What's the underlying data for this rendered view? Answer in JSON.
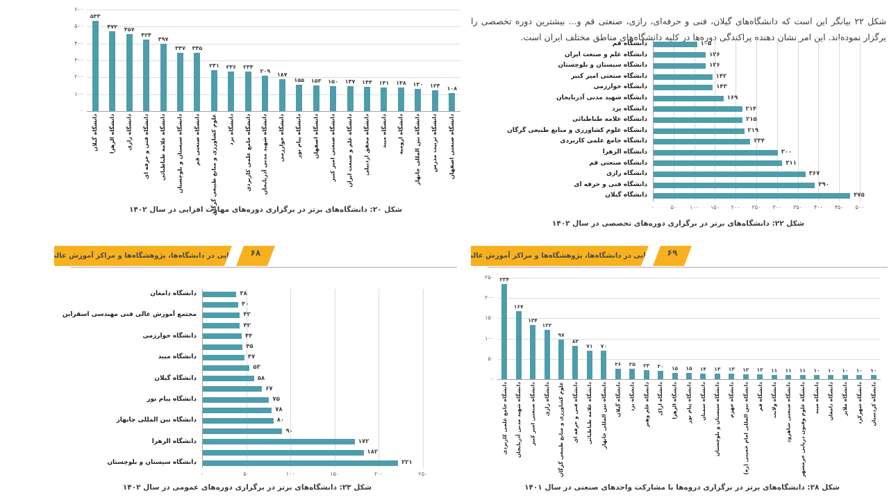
{
  "colors": {
    "bar": "#4E9DAB",
    "banner": "#F8B11E",
    "gridline": "#DCDCDC",
    "axis": "#A0A0A0",
    "text": "#3D3D3D"
  },
  "intro": {
    "text": "شکل ۲۲ بیانگر این است که دانشگاه‌های گیلان، فنی و حرفه‌ای، رازی، صنعتی قم و... بیشترین دوره تخصصی را برگزار نموده‌اند. این امر نشان دهنده پراکندگی دوره‌ها در کلیه دانشگاه‌های مناطق مختلف ایران است."
  },
  "banners": {
    "left": {
      "label": "مهارت‌افزایی در دانشگاه‌ها، پژوهشگاه‌ها و مراکز آموزش عالی کشور",
      "page": "۶۸"
    },
    "right": {
      "label": "مهارت‌افزایی در دانشگاه‌ها، پژوهشگاه‌ها و مراکز آموزش عالی کشور",
      "page": "۶۹"
    }
  },
  "chart_data": [
    {
      "id": "fig20",
      "type": "bar",
      "orientation": "vertical",
      "title": "شکل ۲۰: دانشگاه‌های برتر در برگزاری دوره‌های مهارت افزایی در سال ۱۴۰۲",
      "categories": [
        "دانشگاه گیلان",
        "دانشگاه الزهرا",
        "دانشگاه رازی",
        "دانشگاه فنی و حرفه ای",
        "دانشگاه علامه طباطبائی",
        "دانشگاه سیستان و بلوچستان",
        "دانشگاه صنعتی قم",
        "علوم کشاورزی و منابع طبیعی گرگان",
        "دانشگاه یزد",
        "دانشگاه جامع علمی کاربردی",
        "دانشگاه شهید مدنی آذربایجان",
        "دانشگاه خوارزمی",
        "دانشگاه پیام نور",
        "دانشگاه اصفهان",
        "دانشگاه صنعتی امیر کبیر",
        "دانشگاه علم و صنعت ایران",
        "دانشگاه محقق اردبیلی",
        "دانشگاه میبد",
        "دانشگاه ارومیه",
        "دانشگاه بین المللی چابهار",
        "دانشگاه تربیت مدرس",
        "دانشگاه صنعتی اصفهان"
      ],
      "values": [
        533,
        472,
        457,
        424,
        397,
        347,
        345,
        241,
        236,
        234,
        209,
        187,
        155,
        153,
        150,
        147,
        143,
        141,
        138,
        130,
        124,
        108
      ],
      "value_labels": [
        "۵۳۳",
        "۴۷۲",
        "۴۵۷",
        "۴۲۴",
        "۳۹۷",
        "۳۴۷",
        "۳۴۵",
        "۲۴۱",
        "۲۳۶",
        "۲۳۴",
        "۲۰۹",
        "۱۸۷",
        "۱۵۵",
        "۱۵۳",
        "۱۵۰",
        "۱۴۷",
        "۱۴۳",
        "۱۴۱",
        "۱۳۸",
        "۱۳۰",
        "۱۲۴",
        "۱۰۸"
      ],
      "ylim": [
        0,
        600
      ],
      "yticks": [
        600,
        500,
        400,
        300,
        200,
        100,
        0
      ],
      "ytick_labels": [
        "۶۰۰",
        "۵۰۰",
        "۴۰۰",
        "۳۰۰",
        "۲۰۰",
        "۱۰۰",
        "۰"
      ],
      "grid": true,
      "legend": "none"
    },
    {
      "id": "fig22",
      "type": "bar",
      "orientation": "horizontal",
      "title": "شکل ۲۲: دانشگاه‌های برتر در برگزاری دوره‌های تخصصی در سال ۱۴۰۲",
      "categories": [
        "دانشگاه قم",
        "دانشگاه علم و صنعت ایران",
        "دانشگاه سیستان و بلوچستان",
        "دانشگاه صنعتی امیر کبیر",
        "دانشگاه خوارزمی",
        "دانشگاه شهید مدنی آذربایجان",
        "دانشگاه یزد",
        "دانشگاه علامه طباطبائی",
        "دانشگاه علوم کشاورزی و منابع طبیعی گرگان",
        "دانشگاه جامع علمی کاربردی",
        "دانشگاه الزهرا",
        "دانشگاه صنعتی قم",
        "دانشگاه رازی",
        "دانشگاه فنی و حرفه ای",
        "دانشگاه گیلان"
      ],
      "values": [
        105,
        126,
        126,
        142,
        143,
        169,
        214,
        215,
        219,
        234,
        300,
        311,
        367,
        390,
        475
      ],
      "value_labels": [
        "۱۰۵",
        "۱۲۶",
        "۱۲۶",
        "۱۴۲",
        "۱۴۳",
        "۱۶۹",
        "۲۱۴",
        "۲۱۵",
        "۲۱۹",
        "۲۳۴",
        "۳۰۰",
        "۳۱۱",
        "۳۶۷",
        "۳۹۰",
        "۴۷۵"
      ],
      "xlim": [
        0,
        500
      ],
      "xticks": [
        0,
        50,
        100,
        150,
        200,
        250,
        300,
        350,
        400,
        450,
        500
      ],
      "xtick_labels": [
        "۰",
        "۵۰",
        "۱۰۰",
        "۱۵۰",
        "۲۰۰",
        "۲۵۰",
        "۳۰۰",
        "۳۵۰",
        "۴۰۰",
        "۴۵۰",
        "۵۰۰"
      ],
      "grid": true,
      "legend": "none"
    },
    {
      "id": "fig23",
      "type": "bar",
      "orientation": "horizontal",
      "title": "شکل ۲۳: دانشگاه‌های برتر در برگزاری دوره‌های عمومی در سال ۱۴۰۲",
      "categories": [
        "دانشگاه دامغان",
        "",
        "مجتمع آموزش عالی فنی مهندسی اسفراین",
        "",
        "دانشگاه خوارزمی",
        "",
        "دانشگاه میبد",
        "",
        "دانشگاه گیلان",
        "",
        "دانشگاه پیام نور",
        "",
        "دانشگاه بین المللی چابهار",
        "",
        "دانشگاه الزهرا",
        "",
        "دانشگاه سیستان و بلوچستان"
      ],
      "values": [
        38,
        40,
        42,
        42,
        44,
        45,
        47,
        53,
        58,
        67,
        75,
        78,
        80,
        90,
        172,
        182,
        221
      ],
      "value_labels": [
        "۳۸",
        "۴۰",
        "۴۲",
        "۴۲",
        "۴۴",
        "۴۵",
        "۴۷",
        "۵۳",
        "۵۸",
        "۶۷",
        "۷۵",
        "۷۸",
        "۸۰",
        "۹۰",
        "۱۷۲",
        "۱۸۲",
        "۲۲۱"
      ],
      "xlim": [
        0,
        250
      ],
      "xticks": [
        0,
        50,
        100,
        150,
        200,
        250
      ],
      "xtick_labels": [
        "۰",
        "۵۰",
        "۱۰۰",
        "۱۵۰",
        "۲۰۰",
        "۲۵۰"
      ],
      "grid": true,
      "legend": "none"
    },
    {
      "id": "fig28",
      "type": "bar",
      "orientation": "vertical",
      "title": "شکل ۲۸: دانشگاه‌های برتر در برگزاری دروه‌ها با مشارکت واحدهای صنعتی در سال ۱۴۰۱",
      "categories": [
        "دانشگاه جامع علمی کاربردی",
        "دانشگاه شهید مدنی آذربایجان",
        "دانشگاه صنعتی امیر کبیر",
        "دانشگاه رازی",
        "علوم کشاورزی و منابع طبیعی گرگان",
        "دانشگاه فنی و حرفه ای",
        "دانشگاه علامه طباطبائی",
        "دانشگاه بین المللی چابهار",
        "دانشگاه گیلان",
        "دانشگاه یزد",
        "دانشگاه علم وهنر",
        "دانشگاه اراک",
        "دانشگاه الزهرا",
        "دانشگاه پیام نور",
        "دانشگاه سمنان",
        "دانشگاه سیستان و بلوچستان",
        "دانشگاه جهرم",
        "دانشگاه بین المللی امام خمینی (ره)",
        "دانشگاه قم",
        "دانشگاه ولایت",
        "دانشگاه صنعتی شاهرود",
        "دانشگاه علوم وفنون دریایی خرمشهر",
        "دانشگاه میبد",
        "دانشگاه دامغان",
        "دانشگاه ملایر",
        "دانشگاه شهرکرد",
        "دانشگاه کردستان"
      ],
      "values": [
        234,
        167,
        134,
        122,
        97,
        83,
        71,
        70,
        26,
        25,
        23,
        20,
        15,
        15,
        14,
        13,
        13,
        12,
        12,
        11,
        11,
        11,
        10,
        10,
        10,
        10,
        10
      ],
      "value_labels": [
        "۲۳۴",
        "۱۶۷",
        "۱۳۴",
        "۱۲۲",
        "۹۷",
        "۸۳",
        "۷۱",
        "۷۰",
        "۲۶",
        "۲۵",
        "۲۳",
        "۲۰",
        "۱۵",
        "۱۵",
        "۱۴",
        "۱۳",
        "۱۳",
        "۱۲",
        "۱۲",
        "۱۱",
        "۱۱",
        "۱۱",
        "۱۰",
        "۱۰",
        "۱۰",
        "۱۰",
        "۱۰"
      ],
      "ylim": [
        0,
        250
      ],
      "yticks": [
        250,
        200,
        150,
        100,
        50,
        0
      ],
      "ytick_labels": [
        "۲۵۰",
        "۲۰۰",
        "۱۵۰",
        "۱۰۰",
        "۵۰",
        "۰"
      ],
      "grid": true,
      "legend": "none"
    }
  ]
}
